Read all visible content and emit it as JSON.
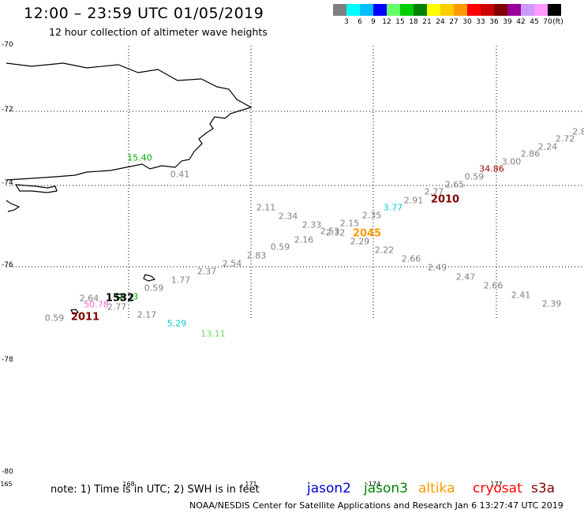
{
  "header": {
    "title": "12:00 – 23:59 UTC 01/05/2019",
    "subtitle": "12 hour collection of altimeter wave heights"
  },
  "colorbar": {
    "colors": [
      "#808080",
      "#00ffff",
      "#00bfff",
      "#0000ff",
      "#66ff66",
      "#00cc00",
      "#008000",
      "#ffff00",
      "#ffcc00",
      "#ff9900",
      "#ff0000",
      "#cc0000",
      "#800000",
      "#990099",
      "#cc99ff",
      "#ff99ff",
      "#000000"
    ],
    "labels": [
      "3",
      "6",
      "9",
      "12",
      "15",
      "18",
      "21",
      "24",
      "27",
      "30",
      "33",
      "36",
      "39",
      "42",
      "45",
      "70"
    ],
    "unit": "(ft)"
  },
  "axes": {
    "lat_labels": [
      "-70",
      "-72",
      "-74",
      "-76",
      "-78",
      "-80"
    ],
    "lon_labels": [
      "165",
      "168",
      "171",
      "-174",
      "177"
    ]
  },
  "observations": [
    {
      "t": "15.40",
      "c": "#00aa00"
    },
    {
      "t": "0.41",
      "c": "#808080"
    },
    {
      "t": "2.11",
      "c": "#808080"
    },
    {
      "t": "2.34",
      "c": "#808080"
    },
    {
      "t": "2.33",
      "c": "#808080"
    },
    {
      "t": "2.53",
      "c": "#808080"
    },
    {
      "t": "2.32",
      "c": "#808080"
    },
    {
      "t": "2.15",
      "c": "#808080"
    },
    {
      "t": "2.16",
      "c": "#808080"
    },
    {
      "t": "0.59",
      "c": "#808080"
    },
    {
      "t": "2.83",
      "c": "#808080"
    },
    {
      "t": "2.54",
      "c": "#808080"
    },
    {
      "t": "2.37",
      "c": "#808080"
    },
    {
      "t": "1.77",
      "c": "#808080"
    },
    {
      "t": "0.59",
      "c": "#808080"
    },
    {
      "t": "2.35",
      "c": "#808080"
    },
    {
      "t": "3.77",
      "c": "#00cccc"
    },
    {
      "t": "2.91",
      "c": "#808080"
    },
    {
      "t": "2.77",
      "c": "#808080"
    },
    {
      "t": "2.65",
      "c": "#808080"
    },
    {
      "t": "0.59",
      "c": "#808080"
    },
    {
      "t": "34.86",
      "c": "#990000"
    },
    {
      "t": "3.00",
      "c": "#808080"
    },
    {
      "t": "2.86",
      "c": "#808080"
    },
    {
      "t": "2.24",
      "c": "#808080"
    },
    {
      "t": "2.72",
      "c": "#808080"
    },
    {
      "t": "2.8",
      "c": "#808080"
    },
    {
      "t": "2.29",
      "c": "#808080"
    },
    {
      "t": "2.22",
      "c": "#808080"
    },
    {
      "t": "2.66",
      "c": "#808080"
    },
    {
      "t": "2.49",
      "c": "#808080"
    },
    {
      "t": "2.47",
      "c": "#808080"
    },
    {
      "t": "2.66",
      "c": "#808080"
    },
    {
      "t": "2.41",
      "c": "#808080"
    },
    {
      "t": "2.39",
      "c": "#808080"
    },
    {
      "t": "2.64",
      "c": "#808080"
    },
    {
      "t": "2.33",
      "c": "#00aa00"
    },
    {
      "t": "50.78",
      "c": "#ff66cc"
    },
    {
      "t": "2.77",
      "c": "#808080"
    },
    {
      "t": "0.59",
      "c": "#808080"
    },
    {
      "t": "2.17",
      "c": "#808080"
    },
    {
      "t": "5.29",
      "c": "#00cccc"
    },
    {
      "t": "13.11",
      "c": "#66dd66"
    }
  ],
  "time_labels": [
    {
      "t": "2010",
      "c": "#800000"
    },
    {
      "t": "2045",
      "c": "#ff9900"
    },
    {
      "t": "1532",
      "c": "#000000"
    },
    {
      "t": "2011",
      "c": "#800000"
    }
  ],
  "footer": {
    "note": "note:  1) Time is in UTC;  2) SWH is in feet",
    "legend": [
      {
        "name": "jason2",
        "c": "#0000cc"
      },
      {
        "name": "jason3",
        "c": "#008000"
      },
      {
        "name": "altika",
        "c": "#ff9900"
      },
      {
        "name": "cryosat",
        "c": "#ff0000"
      },
      {
        "name": "s3a",
        "c": "#800000"
      }
    ],
    "credit": "NOAA/NESDIS Center for Satellite Applications and Research    Jan  6 13:27:47 UTC 2019"
  }
}
